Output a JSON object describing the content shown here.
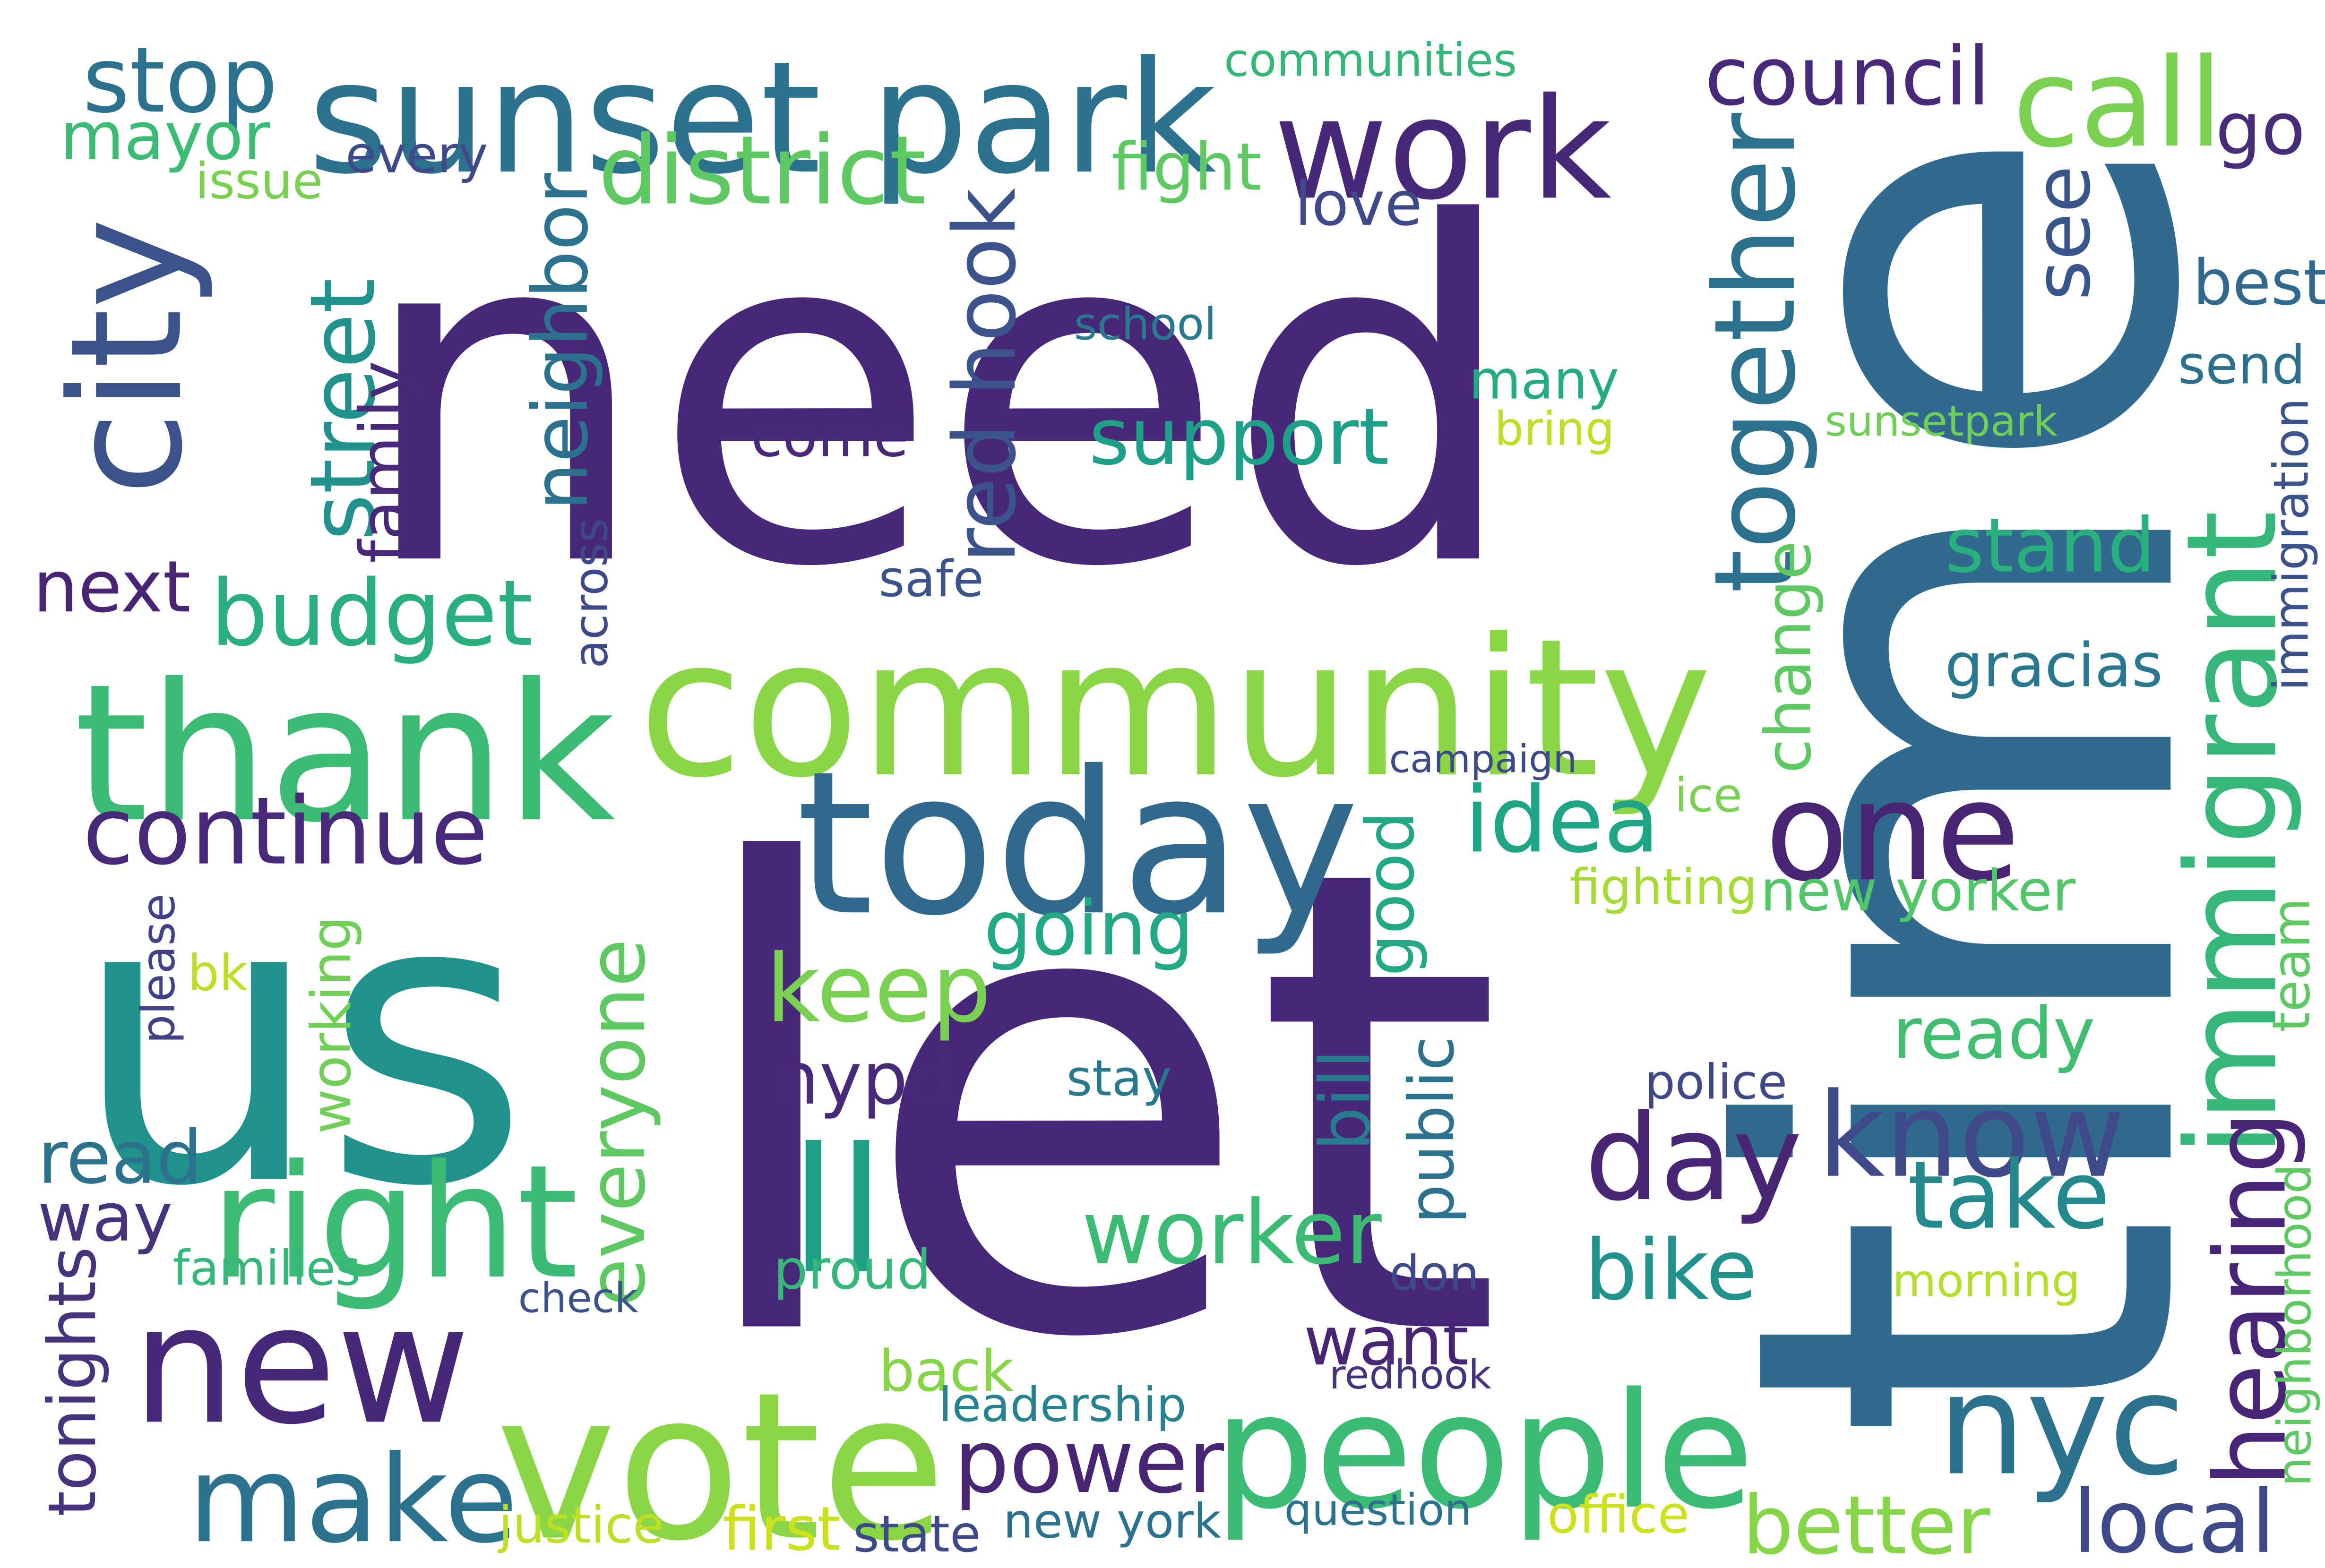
{
  "word_cloud": {
    "words": [
      {
        "text": "need",
        "color": "#472878",
        "orientation": "horizontal"
      },
      {
        "text": "let",
        "color": "#472878",
        "orientation": "horizontal"
      },
      {
        "text": "time",
        "color": "#306a8e",
        "orientation": "vertical"
      },
      {
        "text": "us",
        "color": "#21918c",
        "orientation": "horizontal"
      },
      {
        "text": "community",
        "color": "#8bd646",
        "orientation": "horizontal"
      },
      {
        "text": "thank",
        "color": "#3cbb75",
        "orientation": "horizontal"
      },
      {
        "text": "today",
        "color": "#31688e",
        "orientation": "horizontal"
      },
      {
        "text": "vote",
        "color": "#8bd646",
        "orientation": "horizontal"
      },
      {
        "text": "sunset park",
        "color": "#2c728e",
        "orientation": "horizontal"
      },
      {
        "text": "people",
        "color": "#3cbb75",
        "orientation": "horizontal"
      },
      {
        "text": "new",
        "color": "#472878",
        "orientation": "horizontal"
      },
      {
        "text": "work",
        "color": "#472878",
        "orientation": "horizontal"
      },
      {
        "text": "city",
        "color": "#3b528b",
        "orientation": "vertical"
      },
      {
        "text": "immigrant",
        "color": "#35b779",
        "orientation": "vertical"
      },
      {
        "text": "right",
        "color": "#3cbb75",
        "orientation": "horizontal"
      },
      {
        "text": "one",
        "color": "#482475",
        "orientation": "horizontal"
      },
      {
        "text": "know",
        "color": "#3e4a89",
        "orientation": "horizontal"
      },
      {
        "text": "day",
        "color": "#482575",
        "orientation": "horizontal"
      },
      {
        "text": "nyc",
        "color": "#2c728e",
        "orientation": "horizontal"
      },
      {
        "text": "make",
        "color": "#2c728e",
        "orientation": "horizontal"
      },
      {
        "text": "ll",
        "color": "#1fa187",
        "orientation": "horizontal"
      },
      {
        "text": "continue",
        "color": "#482878",
        "orientation": "horizontal"
      },
      {
        "text": "budget",
        "color": "#29af7f",
        "orientation": "horizontal"
      },
      {
        "text": "keep",
        "color": "#7ad151",
        "orientation": "horizontal"
      },
      {
        "text": "worker",
        "color": "#3cbb75",
        "orientation": "horizontal"
      },
      {
        "text": "power",
        "color": "#482475",
        "orientation": "horizontal"
      },
      {
        "text": "idea",
        "color": "#20a486",
        "orientation": "horizontal"
      },
      {
        "text": "going",
        "color": "#22a884",
        "orientation": "horizontal"
      },
      {
        "text": "together",
        "color": "#2d708e",
        "orientation": "vertical"
      },
      {
        "text": "support",
        "color": "#1fa088",
        "orientation": "horizontal"
      },
      {
        "text": "call",
        "color": "#7ad151",
        "orientation": "horizontal"
      },
      {
        "text": "council",
        "color": "#482878",
        "orientation": "horizontal"
      },
      {
        "text": "stop",
        "color": "#2c728e",
        "orientation": "horizontal"
      },
      {
        "text": "mayor",
        "color": "#3cbb75",
        "orientation": "horizontal"
      },
      {
        "text": "district",
        "color": "#5ec962",
        "orientation": "horizontal"
      },
      {
        "text": "red hook",
        "color": "#3b528b",
        "orientation": "vertical"
      },
      {
        "text": "neighbor",
        "color": "#2c728e",
        "orientation": "vertical"
      },
      {
        "text": "street",
        "color": "#21918c",
        "orientation": "vertical"
      },
      {
        "text": "come",
        "color": "#482878",
        "orientation": "horizontal"
      },
      {
        "text": "many",
        "color": "#25ab82",
        "orientation": "horizontal"
      },
      {
        "text": "stand",
        "color": "#2ab07f",
        "orientation": "horizontal"
      },
      {
        "text": "take",
        "color": "#23898e",
        "orientation": "horizontal"
      },
      {
        "text": "bike",
        "color": "#21918c",
        "orientation": "horizontal"
      },
      {
        "text": "better",
        "color": "#86d549",
        "orientation": "horizontal"
      },
      {
        "text": "local",
        "color": "#3e4989",
        "orientation": "horizontal"
      },
      {
        "text": "hearing",
        "color": "#482677",
        "orientation": "vertical"
      },
      {
        "text": "ready",
        "color": "#42be71",
        "orientation": "horizontal"
      },
      {
        "text": "new yorker",
        "color": "#52c569",
        "orientation": "horizontal"
      },
      {
        "text": "gracias",
        "color": "#2a788e",
        "orientation": "horizontal"
      },
      {
        "text": "see",
        "color": "#39568c",
        "orientation": "vertical"
      },
      {
        "text": "go",
        "color": "#472c7a",
        "orientation": "horizontal"
      },
      {
        "text": "best",
        "color": "#31688e",
        "orientation": "horizontal"
      },
      {
        "text": "send",
        "color": "#2d708e",
        "orientation": "horizontal"
      },
      {
        "text": "immigration",
        "color": "#3b528b",
        "orientation": "vertical"
      },
      {
        "text": "team",
        "color": "#5ec962",
        "orientation": "vertical"
      },
      {
        "text": "everyone",
        "color": "#5ec962",
        "orientation": "vertical"
      },
      {
        "text": "way",
        "color": "#46337e",
        "orientation": "horizontal"
      },
      {
        "text": "read",
        "color": "#2c728e",
        "orientation": "horizontal"
      },
      {
        "text": "nypd",
        "color": "#482878",
        "orientation": "horizontal"
      },
      {
        "text": "want",
        "color": "#482475",
        "orientation": "horizontal"
      },
      {
        "text": "proud",
        "color": "#35b779",
        "orientation": "horizontal"
      },
      {
        "text": "back",
        "color": "#86d549",
        "orientation": "horizontal"
      },
      {
        "text": "bill",
        "color": "#287c8e",
        "orientation": "vertical"
      },
      {
        "text": "good",
        "color": "#22a884",
        "orientation": "vertical"
      },
      {
        "text": "public",
        "color": "#2c728e",
        "orientation": "vertical"
      },
      {
        "text": "change",
        "color": "#5ec962",
        "orientation": "vertical"
      },
      {
        "text": "next",
        "color": "#482475",
        "orientation": "horizontal"
      },
      {
        "text": "tonights",
        "color": "#46337e",
        "orientation": "vertical"
      },
      {
        "text": "family",
        "color": "#482878",
        "orientation": "vertical"
      },
      {
        "text": "working",
        "color": "#70cf57",
        "orientation": "vertical"
      },
      {
        "text": "fight",
        "color": "#5ec962",
        "orientation": "horizontal"
      },
      {
        "text": "love",
        "color": "#3e4989",
        "orientation": "horizontal"
      },
      {
        "text": "every",
        "color": "#3e4989",
        "orientation": "horizontal"
      },
      {
        "text": "communities",
        "color": "#35b779",
        "orientation": "horizontal"
      },
      {
        "text": "issue",
        "color": "#7ad151",
        "orientation": "horizontal"
      },
      {
        "text": "school",
        "color": "#2a788e",
        "orientation": "horizontal"
      },
      {
        "text": "bring",
        "color": "#bddf26",
        "orientation": "horizontal"
      },
      {
        "text": "sunsetpark",
        "color": "#6ece58",
        "orientation": "horizontal"
      },
      {
        "text": "safe",
        "color": "#3b528b",
        "orientation": "horizontal"
      },
      {
        "text": "across",
        "color": "#3e4989",
        "orientation": "vertical"
      },
      {
        "text": "campaign",
        "color": "#3e4989",
        "orientation": "horizontal"
      },
      {
        "text": "ice",
        "color": "#7ad151",
        "orientation": "horizontal"
      },
      {
        "text": "fighting",
        "color": "#a5db36",
        "orientation": "horizontal"
      },
      {
        "text": "please",
        "color": "#424086",
        "orientation": "vertical"
      },
      {
        "text": "bk",
        "color": "#bddf26",
        "orientation": "horizontal"
      },
      {
        "text": "stay",
        "color": "#2a788e",
        "orientation": "horizontal"
      },
      {
        "text": "police",
        "color": "#3e4989",
        "orientation": "horizontal"
      },
      {
        "text": "families",
        "color": "#35b779",
        "orientation": "horizontal"
      },
      {
        "text": "check",
        "color": "#3b528b",
        "orientation": "horizontal"
      },
      {
        "text": "don",
        "color": "#3e4989",
        "orientation": "horizontal"
      },
      {
        "text": "morning",
        "color": "#b5de2b",
        "orientation": "horizontal"
      },
      {
        "text": "neighborhood",
        "color": "#5ec962",
        "orientation": "vertical"
      },
      {
        "text": "redhook",
        "color": "#46337e",
        "orientation": "horizontal"
      },
      {
        "text": "leadership",
        "color": "#26828e",
        "orientation": "horizontal"
      },
      {
        "text": "new york",
        "color": "#2c728e",
        "orientation": "horizontal"
      },
      {
        "text": "question",
        "color": "#2c728e",
        "orientation": "horizontal"
      },
      {
        "text": "justice",
        "color": "#bddf26",
        "orientation": "horizontal"
      },
      {
        "text": "first",
        "color": "#cde11d",
        "orientation": "horizontal"
      },
      {
        "text": "state",
        "color": "#3e4989",
        "orientation": "horizontal"
      },
      {
        "text": "office",
        "color": "#cde11d",
        "orientation": "horizontal"
      }
    ]
  }
}
